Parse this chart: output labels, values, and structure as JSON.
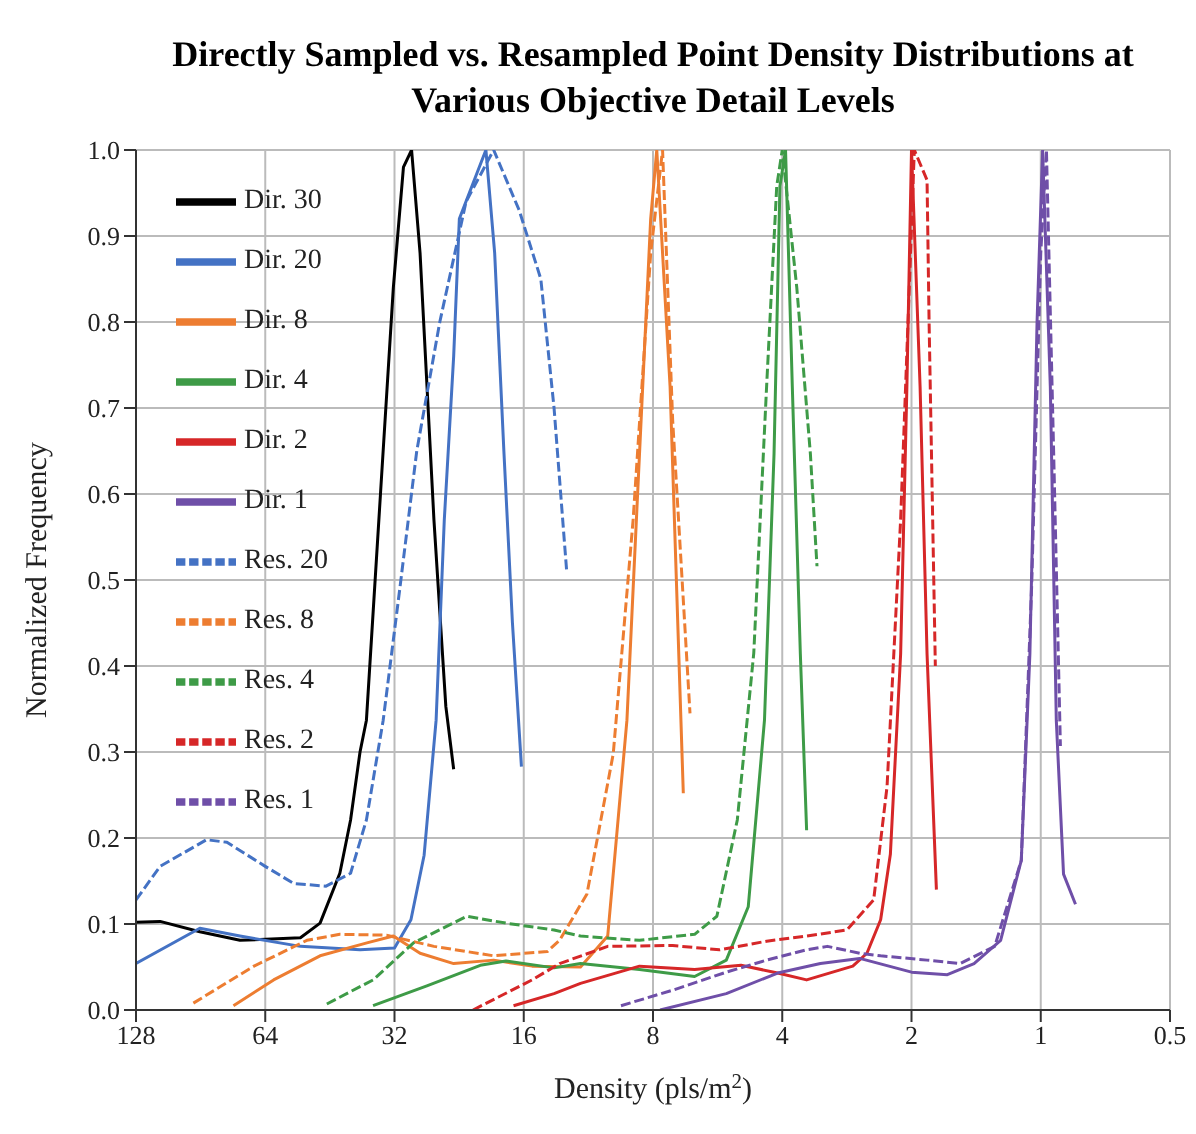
{
  "chart_data": {
    "type": "line",
    "title": "Directly Sampled vs. Resampled Point Density Distributions at Various Objective Detail Levels",
    "xlabel": "Density (pls/m$^{2}$)",
    "ylabel": "Normalized Frequency",
    "log": "x",
    "grid": true,
    "legend": "top left",
    "xlim": [
      128,
      0.5
    ],
    "xticks": [
      128,
      64,
      32,
      16,
      8,
      4,
      2,
      1,
      0.5
    ],
    "ylim": [
      0,
      1
    ],
    "yticks": [
      {
        "value": 0,
        "label": "0.0"
      },
      0.1,
      0.2,
      0.3,
      0.4,
      0.5,
      0.6,
      0.7,
      0.8,
      0.9,
      {
        "value": 1,
        "label": "1.0"
      }
    ],
    "series": [
      {
        "name": "Dir. 30",
        "color": "#000000",
        "line_style": "solid",
        "x": [
          128,
          112.5,
          90.9,
          73.3,
          53,
          47.7,
          42.9,
          40.5,
          38.5,
          37.2,
          34.5,
          32.2,
          30.5,
          29.2,
          27.9,
          25.9,
          24.3,
          23.3
        ],
        "values": [
          0.102,
          0.103,
          0.091,
          0.081,
          0.084,
          0.101,
          0.159,
          0.221,
          0.3,
          0.337,
          0.6,
          0.84,
          0.98,
          1.0,
          0.88,
          0.57,
          0.353,
          0.28
        ]
      },
      {
        "name": "Dir. 20",
        "color": "#4472c4",
        "line_style": "solid",
        "x": [
          128,
          90.9,
          73.3,
          53,
          38.5,
          32,
          29.3,
          27.3,
          25.6,
          24.5,
          23.3,
          22.6,
          19.6,
          18.7,
          17.8,
          17.0,
          16.2
        ],
        "values": [
          0.054,
          0.095,
          0.086,
          0.074,
          0.07,
          0.072,
          0.105,
          0.18,
          0.337,
          0.57,
          0.76,
          0.92,
          1.0,
          0.88,
          0.65,
          0.45,
          0.283
        ]
      },
      {
        "name": "Dir. 8",
        "color": "#ed7d31",
        "line_style": "solid",
        "x": [
          75.9,
          61.2,
          47.7,
          37.1,
          32.2,
          27.9,
          23.3,
          18.8,
          15.3,
          11.8,
          10.2,
          9.2,
          8.6,
          8.1,
          7.84,
          7.3,
          6.8
        ],
        "values": [
          0.005,
          0.035,
          0.063,
          0.078,
          0.086,
          0.066,
          0.054,
          0.058,
          0.051,
          0.05,
          0.086,
          0.337,
          0.647,
          0.92,
          1.0,
          0.725,
          0.252
        ]
      },
      {
        "name": "Dir. 4",
        "color": "#3e9b47",
        "line_style": "solid",
        "x": [
          35.9,
          26.9,
          20.2,
          17.6,
          13.6,
          11.8,
          8.6,
          6.4,
          5.4,
          4.8,
          4.4,
          4.18,
          4.05,
          3.93,
          3.79,
          3.63,
          3.51
        ],
        "values": [
          0.005,
          0.028,
          0.052,
          0.057,
          0.049,
          0.054,
          0.047,
          0.039,
          0.058,
          0.12,
          0.337,
          0.647,
          0.958,
          1.0,
          0.725,
          0.414,
          0.209
        ]
      },
      {
        "name": "Dir. 2",
        "color": "#d62728",
        "line_style": "solid",
        "x": [
          16.9,
          13.6,
          11.8,
          8.6,
          6.4,
          4.99,
          4.1,
          3.51,
          2.74,
          2.54,
          2.36,
          2.24,
          2.12,
          2.05,
          2.0,
          1.91,
          1.84,
          1.75
        ],
        "values": [
          0.005,
          0.019,
          0.031,
          0.051,
          0.047,
          0.052,
          0.043,
          0.035,
          0.051,
          0.066,
          0.105,
          0.181,
          0.414,
          0.725,
          1.0,
          0.725,
          0.414,
          0.14
        ]
      },
      {
        "name": "Dir. 1",
        "color": "#6f4fa8",
        "line_style": "solid",
        "x": [
          7.7,
          5.4,
          4.1,
          3.26,
          2.64,
          2.0,
          1.65,
          1.43,
          1.24,
          1.11,
          1.06,
          1.02,
          0.99,
          0.95,
          0.92,
          0.885,
          0.83
        ],
        "values": [
          0.0,
          0.019,
          0.043,
          0.054,
          0.06,
          0.044,
          0.041,
          0.054,
          0.081,
          0.174,
          0.414,
          0.8,
          1.0,
          0.725,
          0.337,
          0.158,
          0.123
        ]
      },
      {
        "name": "Res. 20",
        "color": "#4472c4",
        "line_style": "dashed",
        "x": [
          128,
          112.5,
          87.7,
          78.6,
          64,
          54.9,
          46.2,
          40.5,
          37.2,
          34.0,
          31.1,
          28.4,
          25.1,
          21.8,
          18.8,
          16.4,
          14.6,
          13.6,
          12.7
        ],
        "values": [
          0.128,
          0.167,
          0.198,
          0.195,
          0.167,
          0.147,
          0.144,
          0.159,
          0.221,
          0.337,
          0.49,
          0.65,
          0.8,
          0.94,
          1.0,
          0.93,
          0.85,
          0.7,
          0.508
        ]
      },
      {
        "name": "Res. 8",
        "color": "#ed7d31",
        "line_style": "dashed",
        "x": [
          94.1,
          68.0,
          51.2,
          42.9,
          33.4,
          25.9,
          18.8,
          14.1,
          13.2,
          11.4,
          9.9,
          8.9,
          8.1,
          7.6,
          7.2,
          6.56
        ],
        "values": [
          0.008,
          0.051,
          0.081,
          0.088,
          0.087,
          0.074,
          0.063,
          0.068,
          0.081,
          0.135,
          0.298,
          0.57,
          0.88,
          1.0,
          0.686,
          0.345
        ]
      },
      {
        "name": "Res. 4",
        "color": "#3e9b47",
        "line_style": "dashed",
        "x": [
          46,
          35.9,
          28.9,
          21.7,
          17.6,
          13.6,
          11.8,
          8.6,
          6.4,
          5.68,
          5.09,
          4.66,
          4.35,
          4.12,
          4.0,
          3.7,
          3.44,
          3.32
        ],
        "values": [
          0.007,
          0.035,
          0.078,
          0.109,
          0.101,
          0.093,
          0.086,
          0.081,
          0.088,
          0.109,
          0.221,
          0.415,
          0.725,
          0.958,
          1.0,
          0.84,
          0.647,
          0.516
        ]
      },
      {
        "name": "Res. 2",
        "color": "#d62728",
        "line_style": "dashed",
        "x": [
          21,
          15.3,
          13.2,
          10.2,
          7.2,
          5.6,
          4.35,
          3.51,
          2.83,
          2.45,
          2.28,
          2.12,
          2.01,
          1.97,
          1.84,
          1.82,
          1.76
        ],
        "values": [
          0.0,
          0.035,
          0.054,
          0.074,
          0.075,
          0.07,
          0.08,
          0.086,
          0.093,
          0.128,
          0.26,
          0.57,
          0.88,
          1.0,
          0.965,
          0.8,
          0.4
        ]
      },
      {
        "name": "Res. 1",
        "color": "#6f4fa8",
        "line_style": "dashed",
        "x": [
          9.5,
          7.2,
          5.4,
          4.35,
          3.51,
          3.14,
          2.64,
          2.36,
          1.84,
          1.54,
          1.28,
          1.11,
          1.05,
          1.0,
          0.97,
          0.933,
          0.9
        ],
        "values": [
          0.005,
          0.023,
          0.044,
          0.058,
          0.07,
          0.074,
          0.066,
          0.063,
          0.058,
          0.054,
          0.074,
          0.174,
          0.493,
          0.88,
          1.0,
          0.647,
          0.307
        ]
      }
    ]
  }
}
